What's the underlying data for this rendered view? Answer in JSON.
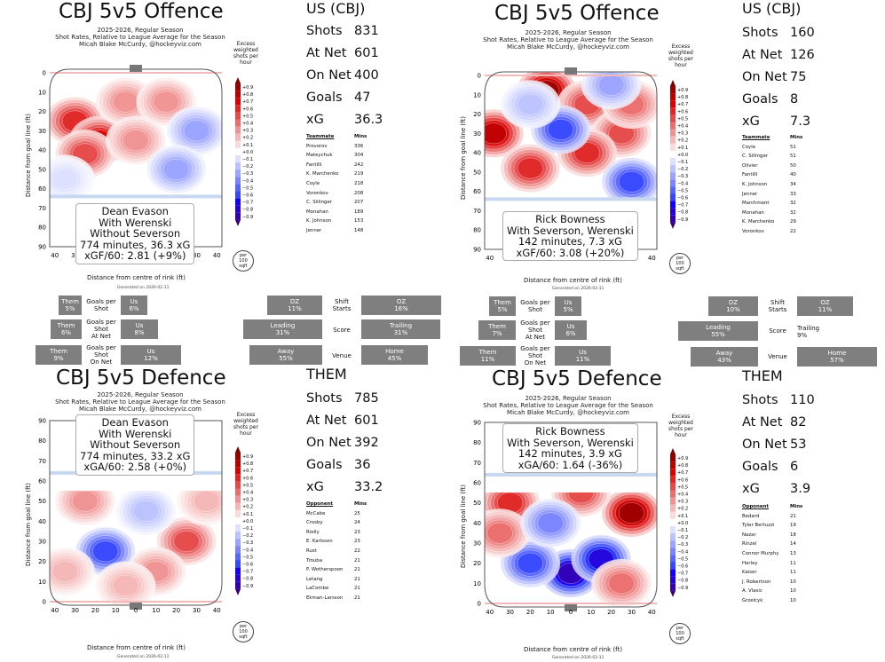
{
  "colors": {
    "red": "#cc0000",
    "blue": "#1f2fd6",
    "box": "#7f7f7f"
  },
  "common": {
    "subtitle_season": "2025-2026, Regular Season",
    "subtitle_desc": "Shot Rates, Relative to League Average for the Season",
    "subtitle_author": "Micah Blake McCurdy, @hockeyviz.com",
    "xlabel": "Distance from centre of rink (ft)",
    "ylabel": "Distance from goal line (ft)",
    "legend_title": "Excess weighted shots per hour",
    "legend_ticks": [
      "+0.9",
      "+0.8",
      "+0.7",
      "+0.6",
      "+0.5",
      "+0.4",
      "+0.3",
      "+0.2",
      "+0.1",
      "+0.0",
      "−0.1",
      "−0.2",
      "−0.3",
      "−0.4",
      "−0.5",
      "−0.6",
      "−0.7",
      "−0.8",
      "−0.9"
    ],
    "per_badge": [
      "per",
      "100",
      "sqft"
    ],
    "x_ticks": [
      "40",
      "30",
      "20",
      "10",
      "0",
      "10",
      "20",
      "30",
      "40"
    ],
    "y_ticks_off": [
      "0",
      "10",
      "20",
      "30",
      "40",
      "50",
      "60",
      "70",
      "80",
      "90"
    ],
    "y_ticks_def": [
      "90",
      "80",
      "70",
      "60",
      "50",
      "40",
      "30",
      "20",
      "10",
      "0"
    ],
    "generated": "Generated on 2026-02-11",
    "them_header": "THEM",
    "mins_header": "Mins"
  },
  "chart_data": [
    {
      "type": "heatmap",
      "title": "CBJ 5v5 Offence",
      "side": "offence",
      "x_range": [
        -42.5,
        42.5
      ],
      "y_range": [
        0,
        90
      ],
      "info": [
        "Dean Evason",
        "With Werenski",
        "Without Severson",
        "774 minutes, 36.3 xG",
        "xGF/60: 2.81 (+9%)"
      ],
      "hotspots": [
        {
          "x": -30,
          "y": 25,
          "v": 0.6
        },
        {
          "x": -18,
          "y": 35,
          "v": 0.7
        },
        {
          "x": -25,
          "y": 42,
          "v": 0.5
        },
        {
          "x": -5,
          "y": 15,
          "v": 0.3
        },
        {
          "x": 0,
          "y": 35,
          "v": 0.3
        },
        {
          "x": 15,
          "y": 15,
          "v": 0.3
        },
        {
          "x": 30,
          "y": 30,
          "v": -0.3
        },
        {
          "x": 20,
          "y": 50,
          "v": -0.3
        },
        {
          "x": -35,
          "y": 55,
          "v": -0.1
        }
      ]
    },
    {
      "type": "heatmap",
      "title": "CBJ 5v5 Offence",
      "side": "offence",
      "x_range": [
        -42.5,
        42.5
      ],
      "y_range": [
        0,
        90
      ],
      "info": [
        "Rick Bowness",
        "With Severson, Werenski",
        "142 minutes, 7.3 xG",
        "xGF/60: 3.08 (+20%)"
      ],
      "hotspots": [
        {
          "x": -12,
          "y": 8,
          "v": 0.9
        },
        {
          "x": -38,
          "y": 30,
          "v": 0.8
        },
        {
          "x": -20,
          "y": 48,
          "v": 0.6
        },
        {
          "x": 8,
          "y": 15,
          "v": 0.5
        },
        {
          "x": 25,
          "y": 30,
          "v": 0.5
        },
        {
          "x": 8,
          "y": 40,
          "v": 0.6
        },
        {
          "x": 30,
          "y": 15,
          "v": 0.4
        },
        {
          "x": -5,
          "y": 28,
          "v": -0.6
        },
        {
          "x": 30,
          "y": 55,
          "v": -0.6
        },
        {
          "x": -20,
          "y": 15,
          "v": -0.2
        },
        {
          "x": 20,
          "y": 5,
          "v": -0.3
        }
      ]
    },
    {
      "type": "heatmap",
      "title": "CBJ 5v5 Defence",
      "side": "defence",
      "x_range": [
        -42.5,
        42.5
      ],
      "y_range": [
        0,
        90
      ],
      "info": [
        "Dean Evason",
        "With Werenski",
        "Without Severson",
        "774 minutes, 33.2 xG",
        "xGA/60: 2.58 (+0%)"
      ],
      "hotspots": [
        {
          "x": -15,
          "y": 25,
          "v": -0.6
        },
        {
          "x": -25,
          "y": 50,
          "v": 0.3
        },
        {
          "x": 25,
          "y": 30,
          "v": 0.5
        },
        {
          "x": 10,
          "y": 15,
          "v": 0.3
        },
        {
          "x": -35,
          "y": 15,
          "v": 0.2
        },
        {
          "x": 5,
          "y": 45,
          "v": -0.2
        },
        {
          "x": 35,
          "y": 50,
          "v": 0.2
        },
        {
          "x": -5,
          "y": 8,
          "v": 0.2
        }
      ]
    },
    {
      "type": "heatmap",
      "title": "CBJ 5v5 Defence",
      "side": "defence",
      "x_range": [
        -42.5,
        42.5
      ],
      "y_range": [
        0,
        90
      ],
      "info": [
        "Rick Bowness",
        "With Severson, Werenski",
        "142 minutes, 3.9 xG",
        "xGA/60: 1.64 (-36%)"
      ],
      "hotspots": [
        {
          "x": 0,
          "y": 15,
          "v": -0.9
        },
        {
          "x": 15,
          "y": 22,
          "v": -0.8
        },
        {
          "x": -20,
          "y": 20,
          "v": -0.6
        },
        {
          "x": 30,
          "y": 45,
          "v": 0.9
        },
        {
          "x": -30,
          "y": 50,
          "v": 0.6
        },
        {
          "x": 5,
          "y": 55,
          "v": 0.5
        },
        {
          "x": -35,
          "y": 35,
          "v": 0.4
        },
        {
          "x": 25,
          "y": 10,
          "v": 0.4
        },
        {
          "x": -10,
          "y": 40,
          "v": -0.4
        }
      ]
    }
  ],
  "panel1": {
    "us_header": "US (CBJ)",
    "stats": [
      {
        "label": "Shots",
        "value": "831"
      },
      {
        "label": "At Net",
        "value": "601"
      },
      {
        "label": "On Net",
        "value": "400"
      },
      {
        "label": "Goals",
        "value": "47"
      },
      {
        "label": "xG",
        "value": "36.3"
      }
    ],
    "table_header": "Teammate",
    "rows": [
      [
        "Provorov",
        "336"
      ],
      [
        "Mateychuk",
        "304"
      ],
      [
        "Fantilli",
        "242"
      ],
      [
        "K. Marchenko",
        "219"
      ],
      [
        "Coyle",
        "218"
      ],
      [
        "Voronkov",
        "208"
      ],
      [
        "C. Sillinger",
        "207"
      ],
      [
        "Monahan",
        "189"
      ],
      [
        "K. Johnson",
        "153"
      ],
      [
        "Jenner",
        "148"
      ]
    ]
  },
  "panel2": {
    "us_header": "US (CBJ)",
    "stats": [
      {
        "label": "Shots",
        "value": "160"
      },
      {
        "label": "At Net",
        "value": "126"
      },
      {
        "label": "On Net",
        "value": "75"
      },
      {
        "label": "Goals",
        "value": "8"
      },
      {
        "label": "xG",
        "value": "7.3"
      }
    ],
    "table_header": "Teammate",
    "rows": [
      [
        "Coyle",
        "51"
      ],
      [
        "C. Sillinger",
        "51"
      ],
      [
        "Olivier",
        "50"
      ],
      [
        "Fantilli",
        "40"
      ],
      [
        "K. Johnson",
        "34"
      ],
      [
        "Jenner",
        "33"
      ],
      [
        "Marchment",
        "32"
      ],
      [
        "Monahan",
        "32"
      ],
      [
        "K. Marchenko",
        "29"
      ],
      [
        "Voronkov",
        "22"
      ]
    ]
  },
  "panel3": {
    "stats": [
      {
        "label": "Shots",
        "value": "785"
      },
      {
        "label": "At Net",
        "value": "601"
      },
      {
        "label": "On Net",
        "value": "392"
      },
      {
        "label": "Goals",
        "value": "36"
      },
      {
        "label": "xG",
        "value": "33.2"
      }
    ],
    "table_header": "Opponent",
    "rows": [
      [
        "McCabe",
        "25"
      ],
      [
        "Crosby",
        "24"
      ],
      [
        "Rielly",
        "23"
      ],
      [
        "E. Karlsson",
        "23"
      ],
      [
        "Rust",
        "22"
      ],
      [
        "Trouba",
        "21"
      ],
      [
        "P. Wotherspoon",
        "21"
      ],
      [
        "Letang",
        "21"
      ],
      [
        "LaCombe",
        "21"
      ],
      [
        "Ekman-Larsson",
        "21"
      ]
    ]
  },
  "panel4": {
    "stats": [
      {
        "label": "Shots",
        "value": "110"
      },
      {
        "label": "At Net",
        "value": "82"
      },
      {
        "label": "On Net",
        "value": "53"
      },
      {
        "label": "Goals",
        "value": "6"
      },
      {
        "label": "xG",
        "value": "3.9"
      }
    ],
    "table_header": "Opponent",
    "rows": [
      [
        "Bedard",
        "21"
      ],
      [
        "Tyler Bertuzzi",
        "19"
      ],
      [
        "Nazar",
        "18"
      ],
      [
        "Rinzel",
        "14"
      ],
      [
        "Connor Murphy",
        "13"
      ],
      [
        "Harley",
        "11"
      ],
      [
        "Kaiser",
        "11"
      ],
      [
        "J. Robertson",
        "10"
      ],
      [
        "A. Vlasic",
        "10"
      ],
      [
        "Grzelcyk",
        "10"
      ]
    ]
  },
  "strip1": {
    "gps": {
      "them": "Them\n5%",
      "label": "Goals per\nShot",
      "us": "Us\n6%"
    },
    "gpsan": {
      "them": "Them\n6%",
      "label": "Goals per\nShot\nAt Net",
      "us": "Us\n8%"
    },
    "gpson": {
      "them": "Them\n9%",
      "label": "Goals per\nShot\nOn Net",
      "us": "Us\n12%"
    },
    "shift": {
      "dz": "DZ\n11%",
      "label": "Shift\nStarts",
      "oz": "OZ\n16%"
    },
    "score": {
      "lead": "Leading\n31%",
      "label": "Score",
      "trail": "Trailing\n31%"
    },
    "venue": {
      "away": "Away\n55%",
      "label": "Venue",
      "home": "Home\n45%"
    }
  },
  "strip2": {
    "gps": {
      "them": "Them\n5%",
      "label": "Goals per\nShot",
      "us": "Us\n5%"
    },
    "gpsan": {
      "them": "Them\n7%",
      "label": "Goals per\nShot\nAt Net",
      "us": "Us\n6%"
    },
    "gpson": {
      "them": "Them\n11%",
      "label": "Goals per\nShot\nOn Net",
      "us": "Us\n11%"
    },
    "shift": {
      "dz": "DZ\n10%",
      "label": "Shift\nStarts",
      "oz": "OZ\n11%"
    },
    "score": {
      "lead": "Leading\n55%",
      "label": "Score",
      "trail": "Trailing\n9%"
    },
    "venue": {
      "away": "Away\n43%",
      "label": "Venue",
      "home": "Home\n57%"
    }
  }
}
